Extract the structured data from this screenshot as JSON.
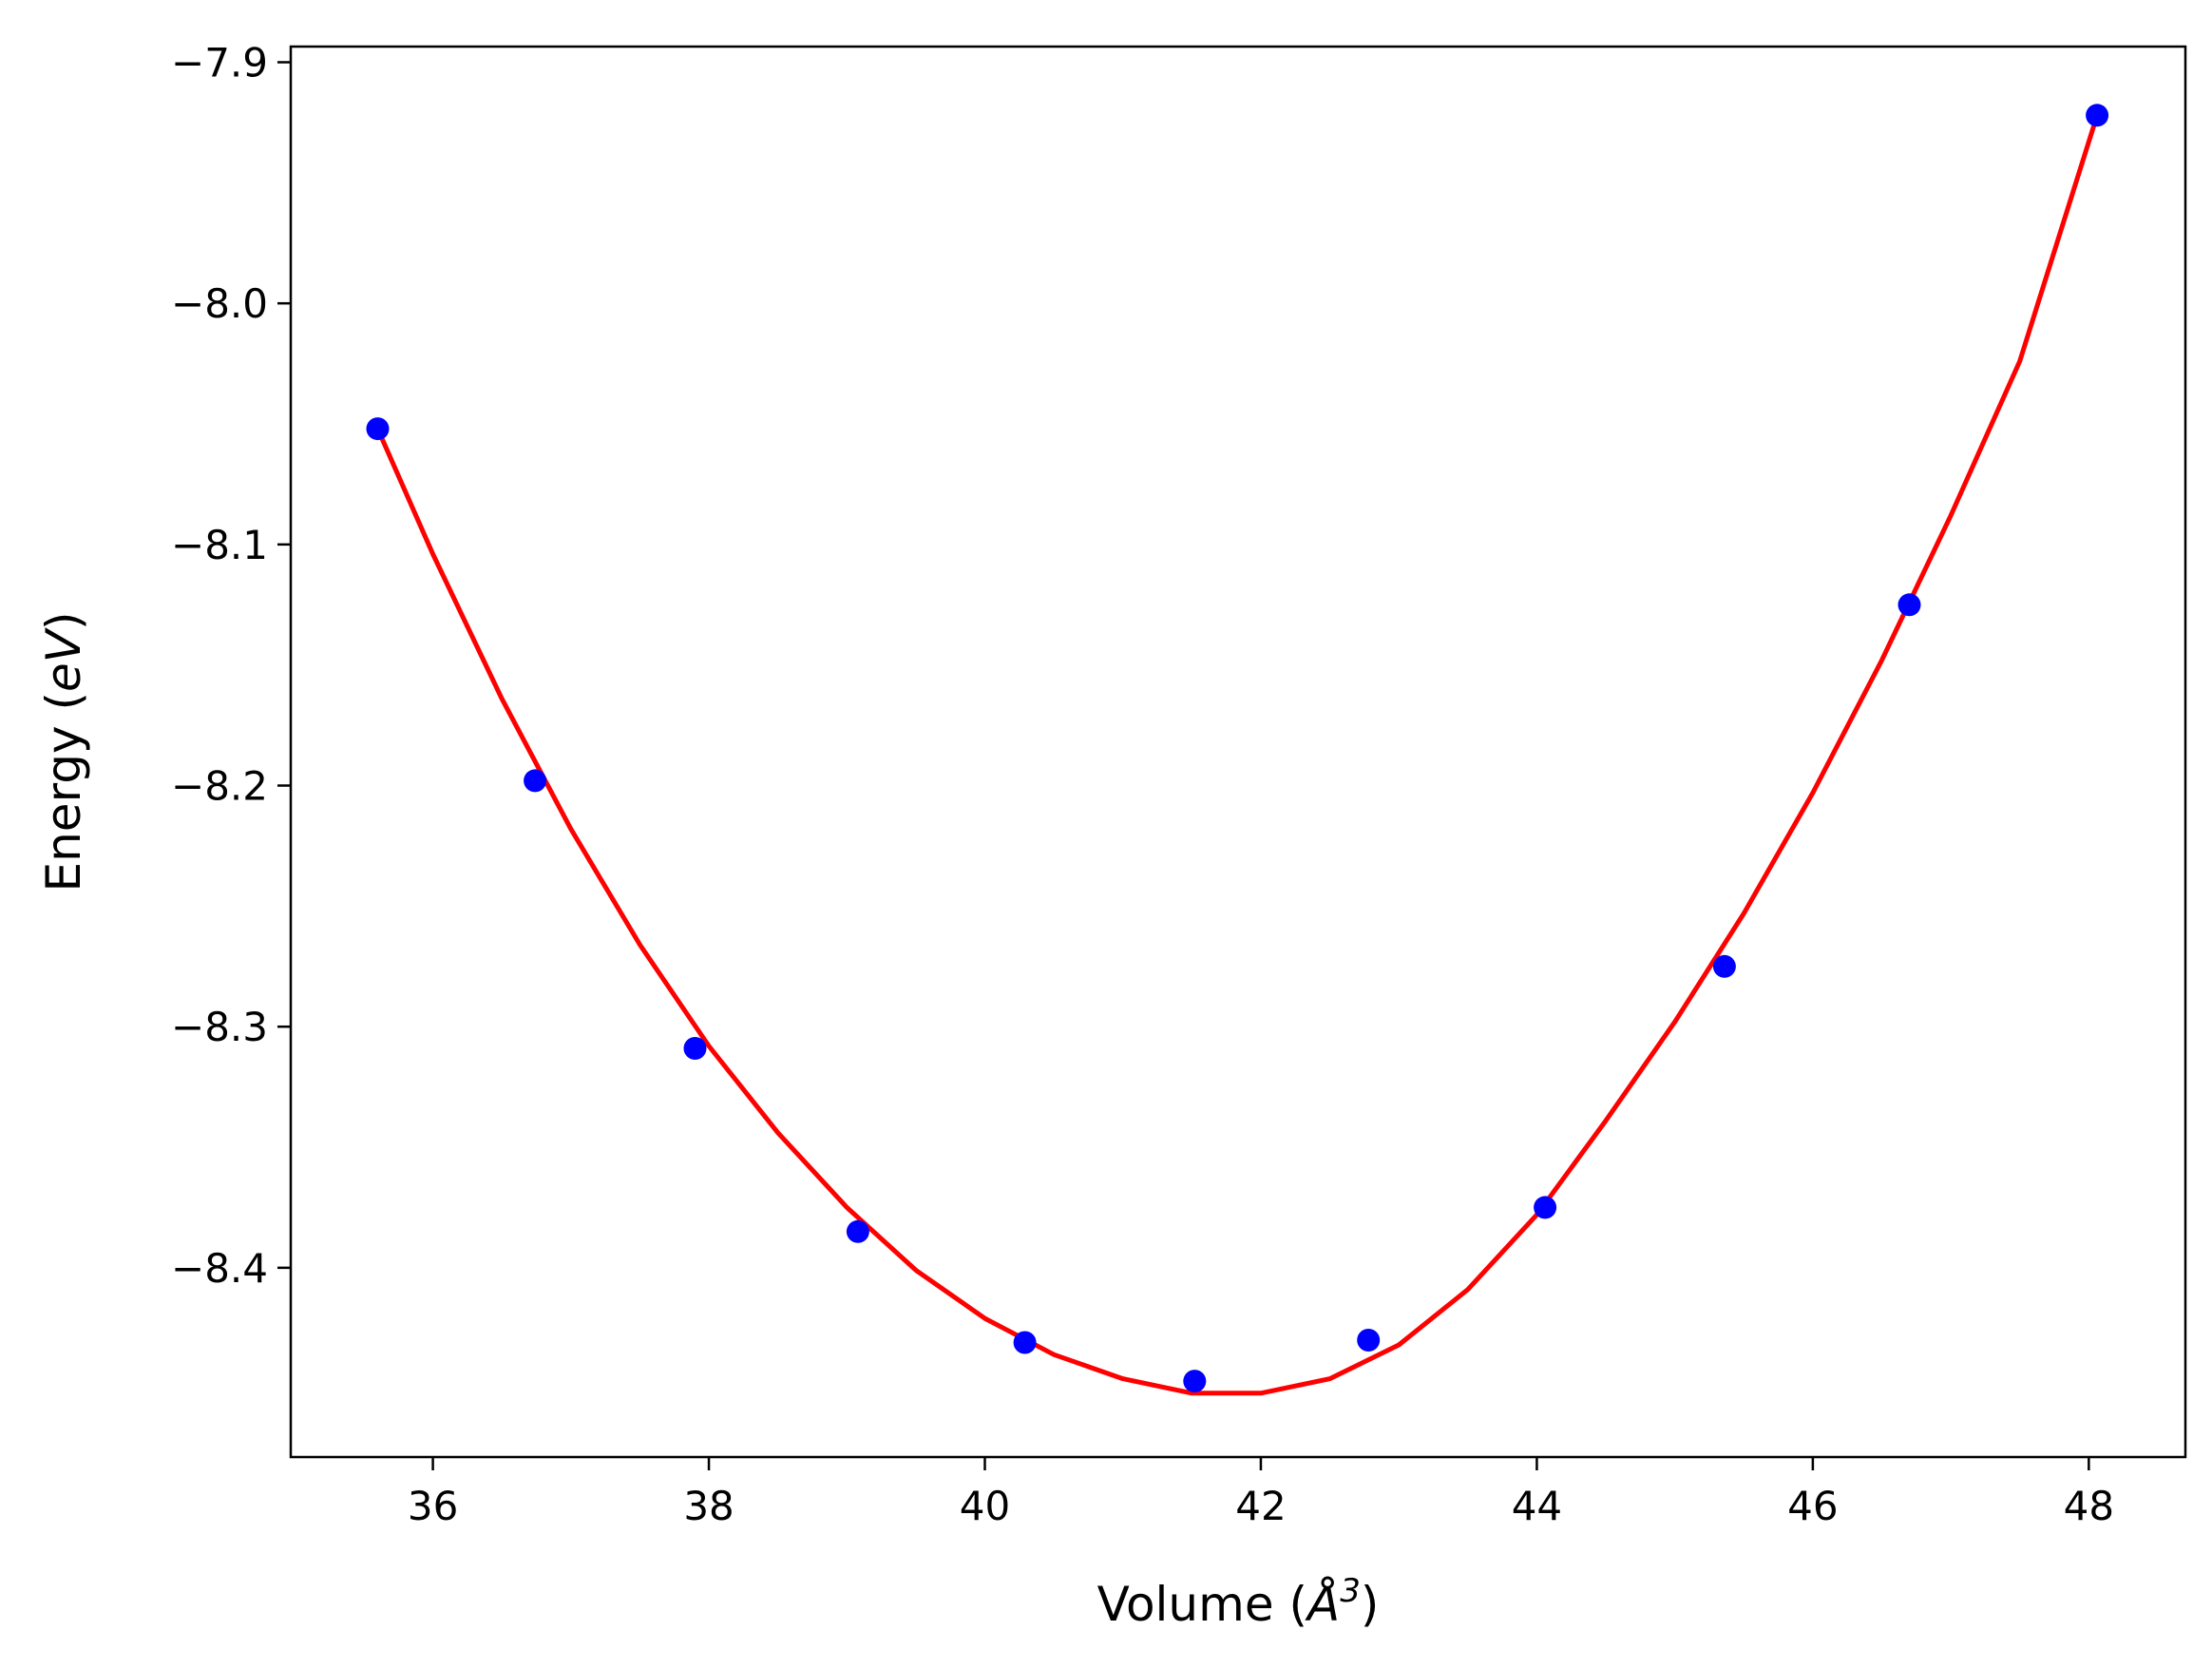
{
  "chart_data": {
    "type": "scatter",
    "xlabel": {
      "prefix": "Volume (",
      "symbol": "Å",
      "superscript": "3",
      "suffix": ")"
    },
    "ylabel": {
      "prefix": "Energy (",
      "unit": "eV",
      "suffix": ")"
    },
    "xlim": [
      34.97,
      48.7
    ],
    "ylim": [
      -8.4785,
      -7.8935
    ],
    "x_ticks": [
      36,
      38,
      40,
      42,
      44,
      46,
      48
    ],
    "x_tick_labels": [
      "36",
      "38",
      "40",
      "42",
      "44",
      "46",
      "48"
    ],
    "y_ticks": [
      -8.4,
      -8.3,
      -8.2,
      -8.1,
      -8.0,
      -7.9
    ],
    "y_tick_labels": [
      "−8.4",
      "−8.3",
      "−8.2",
      "−8.1",
      "−8.0",
      "−7.9"
    ],
    "grid": false,
    "series": [
      {
        "kind": "points",
        "color": "#0000ff",
        "x": [
          35.6,
          36.74,
          37.9,
          39.08,
          40.29,
          41.52,
          42.78,
          44.06,
          45.36,
          46.7,
          48.06
        ],
        "y": [
          -8.052,
          -8.198,
          -8.309,
          -8.385,
          -8.431,
          -8.447,
          -8.43,
          -8.375,
          -8.275,
          -8.125,
          -7.922
        ]
      },
      {
        "kind": "fit-line",
        "color": "#ff0000",
        "x": [
          35.6,
          36.0,
          36.5,
          37.0,
          37.5,
          38.0,
          38.5,
          39.0,
          39.5,
          40.0,
          40.5,
          41.0,
          41.5,
          42.0,
          42.5,
          43.0,
          43.5,
          44.0,
          44.5,
          45.0,
          45.5,
          46.0,
          46.5,
          47.0,
          47.5,
          48.06
        ],
        "y": [
          -8.052,
          -8.104,
          -8.164,
          -8.218,
          -8.266,
          -8.308,
          -8.344,
          -8.375,
          -8.401,
          -8.421,
          -8.436,
          -8.446,
          -8.452,
          -8.452,
          -8.446,
          -8.432,
          -8.409,
          -8.378,
          -8.339,
          -8.298,
          -8.253,
          -8.203,
          -8.148,
          -8.088,
          -8.024,
          -7.922
        ]
      }
    ]
  }
}
